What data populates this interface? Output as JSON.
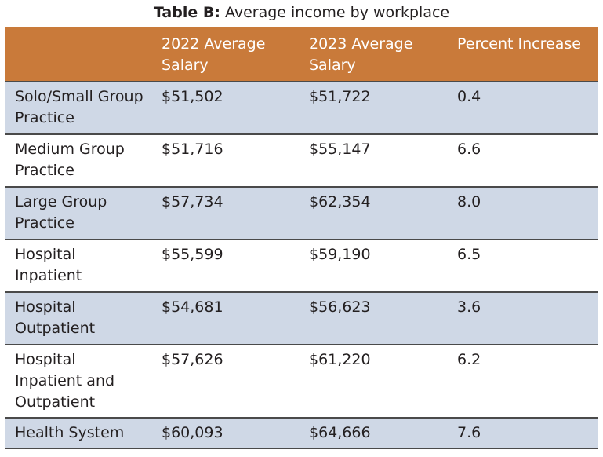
{
  "title": {
    "bold": "Table B:",
    "text": " Average income by workplace"
  },
  "table": {
    "headers": [
      "",
      "2022 Average Salary",
      "2023 Average Salary",
      "Percent Increase"
    ],
    "rows": [
      [
        "Solo/Small Group Practice",
        "$51,502",
        "$51,722",
        "0.4"
      ],
      [
        "Medium Group Practice",
        "$51,716",
        "$55,147",
        "6.6"
      ],
      [
        "Large Group Practice",
        "$57,734",
        "$62,354",
        "8.0"
      ],
      [
        "Hospital Inpatient",
        "$55,599",
        "$59,190",
        "6.5"
      ],
      [
        "Hospital Outpatient",
        "$54,681",
        "$56,623",
        "3.6"
      ],
      [
        "Hospital Inpatient and Outpatient",
        "$57,626",
        "$61,220",
        "6.2"
      ],
      [
        "Health System",
        "$60,093",
        "$64,666",
        "7.6"
      ]
    ]
  },
  "colors": {
    "header_bg": "#c97a3a",
    "row_shade": "#cfd8e6",
    "row_white": "#ffffff"
  }
}
